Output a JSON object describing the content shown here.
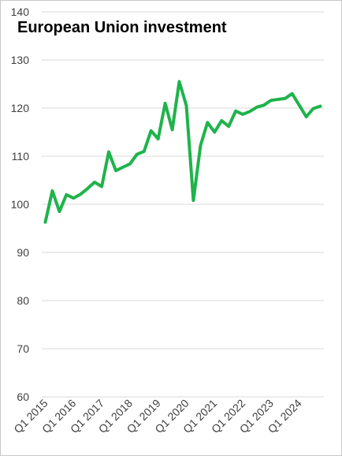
{
  "chart_data": {
    "type": "line",
    "title": "European Union investment",
    "xlabel": "",
    "ylabel": "",
    "ylim": [
      60,
      140
    ],
    "yticks": [
      60,
      70,
      80,
      90,
      100,
      110,
      120,
      130,
      140
    ],
    "grid": true,
    "legend": "none",
    "line_color": "#1fb34b",
    "xtick_labels": [
      "Q1 2015",
      "Q1 2016",
      "Q1 2017",
      "Q1 2018",
      "Q1 2019",
      "Q1 2020",
      "Q1 2021",
      "Q1 2022",
      "Q1 2023",
      "Q1 2024"
    ],
    "x": [
      "Q1 2015",
      "Q2 2015",
      "Q3 2015",
      "Q4 2015",
      "Q1 2016",
      "Q2 2016",
      "Q3 2016",
      "Q4 2016",
      "Q1 2017",
      "Q2 2017",
      "Q3 2017",
      "Q4 2017",
      "Q1 2018",
      "Q2 2018",
      "Q3 2018",
      "Q4 2018",
      "Q1 2019",
      "Q2 2019",
      "Q3 2019",
      "Q4 2019",
      "Q1 2020",
      "Q2 2020",
      "Q3 2020",
      "Q4 2020",
      "Q1 2021",
      "Q2 2021",
      "Q3 2021",
      "Q4 2021",
      "Q1 2022",
      "Q2 2022",
      "Q3 2022",
      "Q4 2022",
      "Q1 2023",
      "Q2 2023",
      "Q3 2023",
      "Q4 2023",
      "Q1 2024",
      "Q2 2024",
      "Q3 2024",
      "Q4 2024"
    ],
    "series": [
      {
        "values": [
          96.3,
          102.8,
          98.5,
          102.0,
          101.3,
          102.1,
          103.3,
          104.6,
          103.7,
          110.9,
          107.0,
          107.7,
          108.4,
          110.4,
          111.0,
          115.3,
          113.6,
          121.0,
          115.5,
          125.5,
          120.5,
          100.8,
          112.2,
          117.0,
          115.0,
          117.4,
          116.2,
          119.4,
          118.7,
          119.3,
          120.2,
          120.6,
          121.6,
          121.8,
          122.0,
          123.0,
          120.6,
          118.2,
          119.9,
          120.4
        ]
      }
    ]
  }
}
